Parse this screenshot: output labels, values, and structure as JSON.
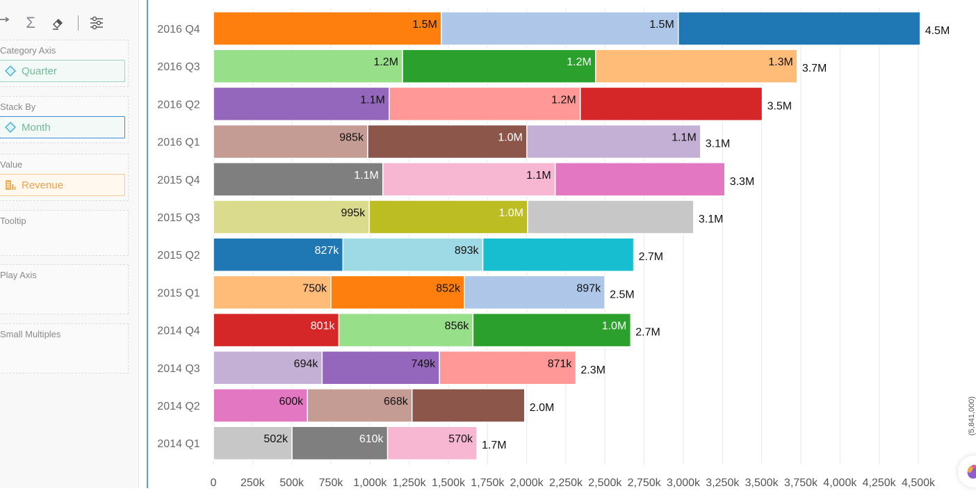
{
  "toolbar": {
    "icons": [
      "axis-icon",
      "sigma-icon",
      "eraser-icon",
      "settings-sliders-icon"
    ]
  },
  "fields": {
    "category_axis": {
      "label": "Category Axis",
      "value": "Quarter",
      "icon": "diamond-icon"
    },
    "stack_by": {
      "label": "Stack By",
      "value": "Month",
      "icon": "diamond-icon"
    },
    "value": {
      "label": "Value",
      "value": "Revenue",
      "icon": "measure-icon"
    },
    "tooltip": {
      "label": "Tooltip"
    },
    "play_axis": {
      "label": "Play Axis"
    },
    "small_multiples": {
      "label": "Small Multiples"
    }
  },
  "side_text": "(5,841,000)",
  "chart_data": {
    "type": "bar",
    "orientation": "horizontal",
    "stacked": true,
    "title": "",
    "xlabel": "",
    "ylabel": "",
    "xlim": [
      0,
      4500000
    ],
    "grid": true,
    "x_ticks": [
      "0",
      "250k",
      "500k",
      "750k",
      "1,000k",
      "1,250k",
      "1,500k",
      "1,750k",
      "2,000k",
      "2,250k",
      "2,500k",
      "2,750k",
      "3,000k",
      "3,250k",
      "3,500k",
      "3,750k",
      "4,000k",
      "4,250k",
      "4,500k"
    ],
    "categories": [
      "2016 Q4",
      "2016 Q3",
      "2016 Q2",
      "2016 Q1",
      "2015 Q4",
      "2015 Q3",
      "2015 Q2",
      "2015 Q1",
      "2014 Q4",
      "2014 Q3",
      "2014 Q2",
      "2014 Q1"
    ],
    "rows": [
      {
        "category": "2016 Q4",
        "total_label": "4.5M",
        "segments": [
          {
            "value": 1455000,
            "label": "1.5M",
            "color": "#ff7f0e",
            "label_color": "#111"
          },
          {
            "value": 1513000,
            "label": "1.5M",
            "color": "#aec7e8",
            "label_color": "#111"
          },
          {
            "value": 1544000,
            "label": "",
            "color": "#1f77b4",
            "label_color": "#fff"
          }
        ]
      },
      {
        "category": "2016 Q3",
        "total_label": "3.7M",
        "segments": [
          {
            "value": 1207000,
            "label": "1.2M",
            "color": "#98df8a",
            "label_color": "#111"
          },
          {
            "value": 1233000,
            "label": "1.2M",
            "color": "#2ca02c",
            "label_color": "#fff"
          },
          {
            "value": 1287000,
            "label": "1.3M",
            "color": "#ffbb78",
            "label_color": "#111"
          }
        ]
      },
      {
        "category": "2016 Q2",
        "total_label": "3.5M",
        "segments": [
          {
            "value": 1122000,
            "label": "1.1M",
            "color": "#9467bd",
            "label_color": "#111"
          },
          {
            "value": 1220000,
            "label": "1.2M",
            "color": "#ff9896",
            "label_color": "#111"
          },
          {
            "value": 1162000,
            "label": "",
            "color": "#d62728",
            "label_color": "#fff"
          }
        ]
      },
      {
        "category": "2016 Q1",
        "total_label": "3.1M",
        "segments": [
          {
            "value": 985000,
            "label": "985k",
            "color": "#c49c94",
            "label_color": "#111"
          },
          {
            "value": 1016000,
            "label": "1.0M",
            "color": "#8c564b",
            "label_color": "#fff"
          },
          {
            "value": 1109000,
            "label": "1.1M",
            "color": "#c5b0d5",
            "label_color": "#111"
          }
        ]
      },
      {
        "category": "2015 Q4",
        "total_label": "3.3M",
        "segments": [
          {
            "value": 1082000,
            "label": "1.1M",
            "color": "#7f7f7f",
            "label_color": "#fff"
          },
          {
            "value": 1100000,
            "label": "1.1M",
            "color": "#f7b6d2",
            "label_color": "#111"
          },
          {
            "value": 1083000,
            "label": "",
            "color": "#e377c2",
            "label_color": "#111"
          }
        ]
      },
      {
        "category": "2015 Q3",
        "total_label": "3.1M",
        "segments": [
          {
            "value": 995000,
            "label": "995k",
            "color": "#dbdb8d",
            "label_color": "#111"
          },
          {
            "value": 1011000,
            "label": "1.0M",
            "color": "#bcbd22",
            "label_color": "#fff"
          },
          {
            "value": 1060000,
            "label": "",
            "color": "#c7c7c7",
            "label_color": "#111"
          }
        ]
      },
      {
        "category": "2015 Q2",
        "total_label": "2.7M",
        "segments": [
          {
            "value": 827000,
            "label": "827k",
            "color": "#1f77b4",
            "label_color": "#fff"
          },
          {
            "value": 893000,
            "label": "893k",
            "color": "#9edae5",
            "label_color": "#111"
          },
          {
            "value": 963000,
            "label": "",
            "color": "#17becf",
            "label_color": "#111"
          }
        ]
      },
      {
        "category": "2015 Q1",
        "total_label": "2.5M",
        "segments": [
          {
            "value": 750000,
            "label": "750k",
            "color": "#ffbb78",
            "label_color": "#111"
          },
          {
            "value": 852000,
            "label": "852k",
            "color": "#ff7f0e",
            "label_color": "#111"
          },
          {
            "value": 897000,
            "label": "897k",
            "color": "#aec7e8",
            "label_color": "#111"
          }
        ]
      },
      {
        "category": "2014 Q4",
        "total_label": "2.7M",
        "segments": [
          {
            "value": 801000,
            "label": "801k",
            "color": "#d62728",
            "label_color": "#fff"
          },
          {
            "value": 856000,
            "label": "856k",
            "color": "#98df8a",
            "label_color": "#111"
          },
          {
            "value": 1007000,
            "label": "1.0M",
            "color": "#2ca02c",
            "label_color": "#fff"
          }
        ]
      },
      {
        "category": "2014 Q3",
        "total_label": "2.3M",
        "segments": [
          {
            "value": 694000,
            "label": "694k",
            "color": "#c5b0d5",
            "label_color": "#111"
          },
          {
            "value": 749000,
            "label": "749k",
            "color": "#9467bd",
            "label_color": "#111"
          },
          {
            "value": 871000,
            "label": "871k",
            "color": "#ff9896",
            "label_color": "#111"
          }
        ]
      },
      {
        "category": "2014 Q2",
        "total_label": "2.0M",
        "segments": [
          {
            "value": 600000,
            "label": "600k",
            "color": "#e377c2",
            "label_color": "#111"
          },
          {
            "value": 668000,
            "label": "668k",
            "color": "#c49c94",
            "label_color": "#111"
          },
          {
            "value": 719000,
            "label": "",
            "color": "#8c564b",
            "label_color": "#fff"
          }
        ]
      },
      {
        "category": "2014 Q1",
        "total_label": "1.7M",
        "segments": [
          {
            "value": 502000,
            "label": "502k",
            "color": "#c7c7c7",
            "label_color": "#111"
          },
          {
            "value": 610000,
            "label": "610k",
            "color": "#7f7f7f",
            "label_color": "#fff"
          },
          {
            "value": 570000,
            "label": "570k",
            "color": "#f7b6d2",
            "label_color": "#111"
          }
        ]
      }
    ]
  }
}
